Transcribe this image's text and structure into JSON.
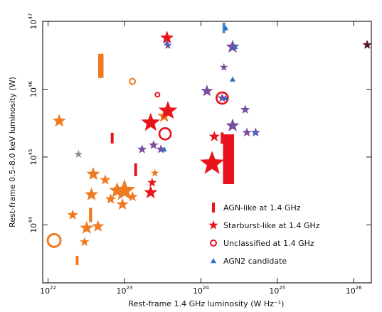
{
  "chart_data": {
    "type": "scatter",
    "xlabel": "Rest-frame 1.4 GHz luminosity (W Hz⁻¹)",
    "ylabel": "Rest-frame 0.5–8.0 keV luminosity (W)",
    "xscale": "log",
    "yscale": "log",
    "xlim": [
      8.5e+21,
      1.7e+26
    ],
    "ylim": [
      1.4e+43,
      1e+47
    ],
    "xticks": [
      {
        "value": 1e+22,
        "label": "10",
        "exp": "22"
      },
      {
        "value": 1e+23,
        "label": "10",
        "exp": "23"
      },
      {
        "value": 1e+24,
        "label": "10",
        "exp": "24"
      },
      {
        "value": 1e+25,
        "label": "10",
        "exp": "25"
      },
      {
        "value": 1e+26,
        "label": "10",
        "exp": "26"
      }
    ],
    "yticks": [
      {
        "value": 1e+44,
        "label": "10",
        "exp": "44"
      },
      {
        "value": 1e+45,
        "label": "10",
        "exp": "45"
      },
      {
        "value": 1e+46,
        "label": "10",
        "exp": "46"
      },
      {
        "value": 1e+47,
        "label": "10",
        "exp": "47"
      }
    ],
    "legend": "lower right",
    "series": [
      {
        "name": "AGN-like at 1.4 GHz",
        "marker": "bar",
        "color": "#e8141c",
        "x": [
          4.9e+22,
          6.9e+22,
          1.4e+23,
          3.6e+22,
          2.4e+22,
          2.3e+24,
          1.9e+24,
          2e+24
        ],
        "values": [
          2.2e+46,
          1.9e+45,
          6.5e+44,
          1.4e+44,
          3e+43,
          9.3e+44,
          1.9e+45,
          8e+46
        ],
        "sizes": [
          34,
          15,
          18,
          20,
          13,
          70,
          16,
          15
        ],
        "colors": [
          "#f07a22",
          "#e8141c",
          "#e8141c",
          "#f07a22",
          "#f07a22",
          "#e8141c",
          "#e8141c",
          "#4a8fd6"
        ]
      },
      {
        "name": "Starburst-like at 1.4 GHz",
        "marker": "star",
        "color": "#e8141c",
        "x": [
          1.4e+22,
          2.5e+22,
          2.1e+22,
          3.7e+22,
          3.2e+22,
          4.5e+22,
          3e+22,
          3.9e+22,
          5.6e+22,
          6.6e+22,
          8e+22,
          1e+23,
          9.4e+22,
          1.27e+23,
          2.2e+23,
          2.3e+23,
          2.5e+23,
          3.3e+23,
          2.2e+23,
          3.7e+23,
          3.6e+23,
          3.7e+23,
          1.7e+23,
          2.4e+23,
          3e+23,
          1.2e+24,
          1.4e+24,
          1.5e+24,
          2.6e+24,
          2.6e+24,
          4e+24,
          5.2e+24,
          3.8e+24,
          1.9e+24,
          1.5e+26,
          2e+24
        ],
        "values": [
          3.4e+45,
          1.1e+45,
          1.4e+44,
          2.8e+44,
          9e+43,
          9.5e+43,
          5.6e+43,
          5.6e+44,
          4.6e+44,
          2.4e+44,
          3.2e+44,
          3.2e+44,
          2e+44,
          2.6e+44,
          3e+44,
          4.2e+44,
          5.8e+44,
          4e+45,
          3.2e+45,
          4.8e+45,
          5.7e+46,
          4.4e+46,
          1.3e+45,
          1.5e+45,
          1.3e+45,
          9.4e+45,
          8e+44,
          2e+45,
          4.2e+46,
          2.9e+45,
          2.3e+45,
          2.3e+45,
          5e+45,
          7.4e+45,
          4.5e+46,
          2.1e+46
        ],
        "sizes": [
          10,
          6,
          8,
          10,
          10,
          9,
          7,
          10,
          8,
          8,
          12,
          16,
          9,
          8,
          10,
          7,
          6,
          10,
          14,
          14,
          10,
          6,
          7,
          7,
          7,
          9,
          18,
          8,
          10,
          10,
          7,
          7,
          7,
          7,
          7,
          6
        ],
        "colors": [
          "#f07a22",
          "#8c8c8c",
          "#f07a22",
          "#f07a22",
          "#f07a22",
          "#f07a22",
          "#f07a22",
          "#f07a22",
          "#f07a22",
          "#f07a22",
          "#f07a22",
          "#f07a22",
          "#f07a22",
          "#f07a22",
          "#e8141c",
          "#e8141c",
          "#f07a22",
          "#f07a22",
          "#e8141c",
          "#e8141c",
          "#e8141c",
          "#7a4fa0",
          "#7a4fa0",
          "#7a4fa0",
          "#7a4fa0",
          "#7a4fa0",
          "#e8141c",
          "#e8141c",
          "#7a4fa0",
          "#7a4fa0",
          "#7a4fa0",
          "#7a4fa0",
          "#7a4fa0",
          "#7a4fa0",
          "#5a1a2a",
          "#7a4fa0"
        ]
      },
      {
        "name": "Unclassified at 1.4 GHz",
        "marker": "circle",
        "color": "#e8141c",
        "x": [
          1.2e+22,
          1.27e+23,
          3.4e+23,
          2.7e+23,
          1.9e+24
        ],
        "values": [
          5.9e+43,
          1.3e+46,
          2.2e+45,
          8.3e+45,
          7.4e+45
        ],
        "sizes": [
          9,
          4,
          8,
          3,
          8
        ],
        "colors": [
          "#f07a22",
          "#f07a22",
          "#e8141c",
          "#e8141c",
          "#e8141c"
        ]
      },
      {
        "name": "AGN2 candidate",
        "marker": "triangle",
        "color": "#2f6fc8",
        "x": [
          2.1e+24,
          2.1e+24,
          2.6e+24,
          3.6e+23,
          3.3e+23,
          2.8e+24,
          5.2e+24
        ],
        "values": [
          7.4e+45,
          8e+46,
          1.4e+46,
          4.8e+46,
          1.3e+45,
          4.2e+46,
          2.3e+45
        ],
        "sizes": [
          4,
          4,
          4,
          4,
          4,
          4,
          4
        ],
        "colors": [
          "#2f6fc8",
          "#2f6fc8",
          "#2f6fc8",
          "#2f6fc8",
          "#2f6fc8",
          "#2f6fc8",
          "#2f6fc8"
        ]
      }
    ]
  }
}
